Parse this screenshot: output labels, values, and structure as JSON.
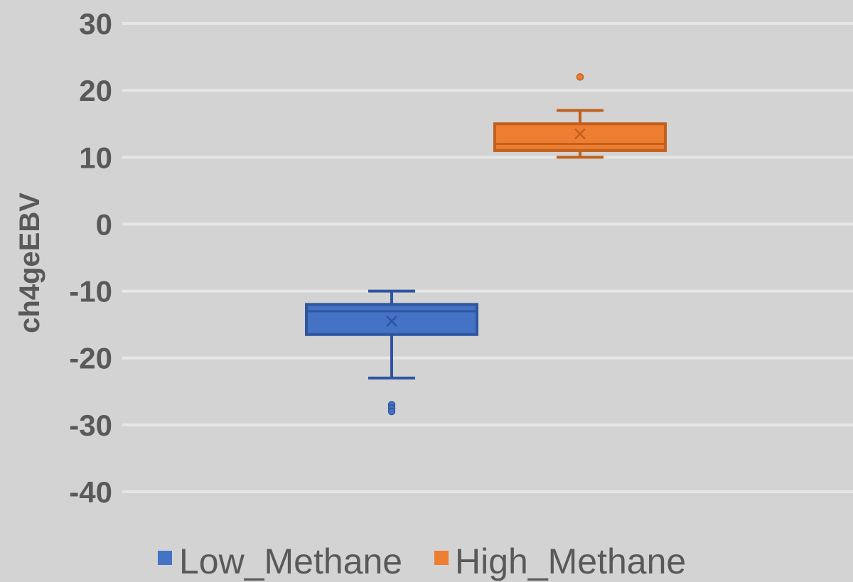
{
  "chart_data": {
    "type": "box",
    "title": "",
    "xlabel": "",
    "ylabel": "ch4geEBV",
    "ylim": [
      -40,
      30
    ],
    "yticks": [
      30,
      20,
      10,
      0,
      -10,
      -20,
      -30,
      -40
    ],
    "grid": true,
    "legend_position": "bottom",
    "series": [
      {
        "name": "Low_Methane",
        "color": "#4472c4",
        "whisker_low": -23,
        "q1": -16.5,
        "median": -13,
        "q3": -12,
        "whisker_high": -10,
        "mean": -14.5,
        "outliers": [
          -27,
          -27.5,
          -28
        ]
      },
      {
        "name": "High_Methane",
        "color": "#ed7d31",
        "whisker_low": 10,
        "q1": 11,
        "median": 12,
        "q3": 15,
        "whisker_high": 17,
        "mean": 13.5,
        "outliers": [
          22
        ]
      }
    ]
  }
}
